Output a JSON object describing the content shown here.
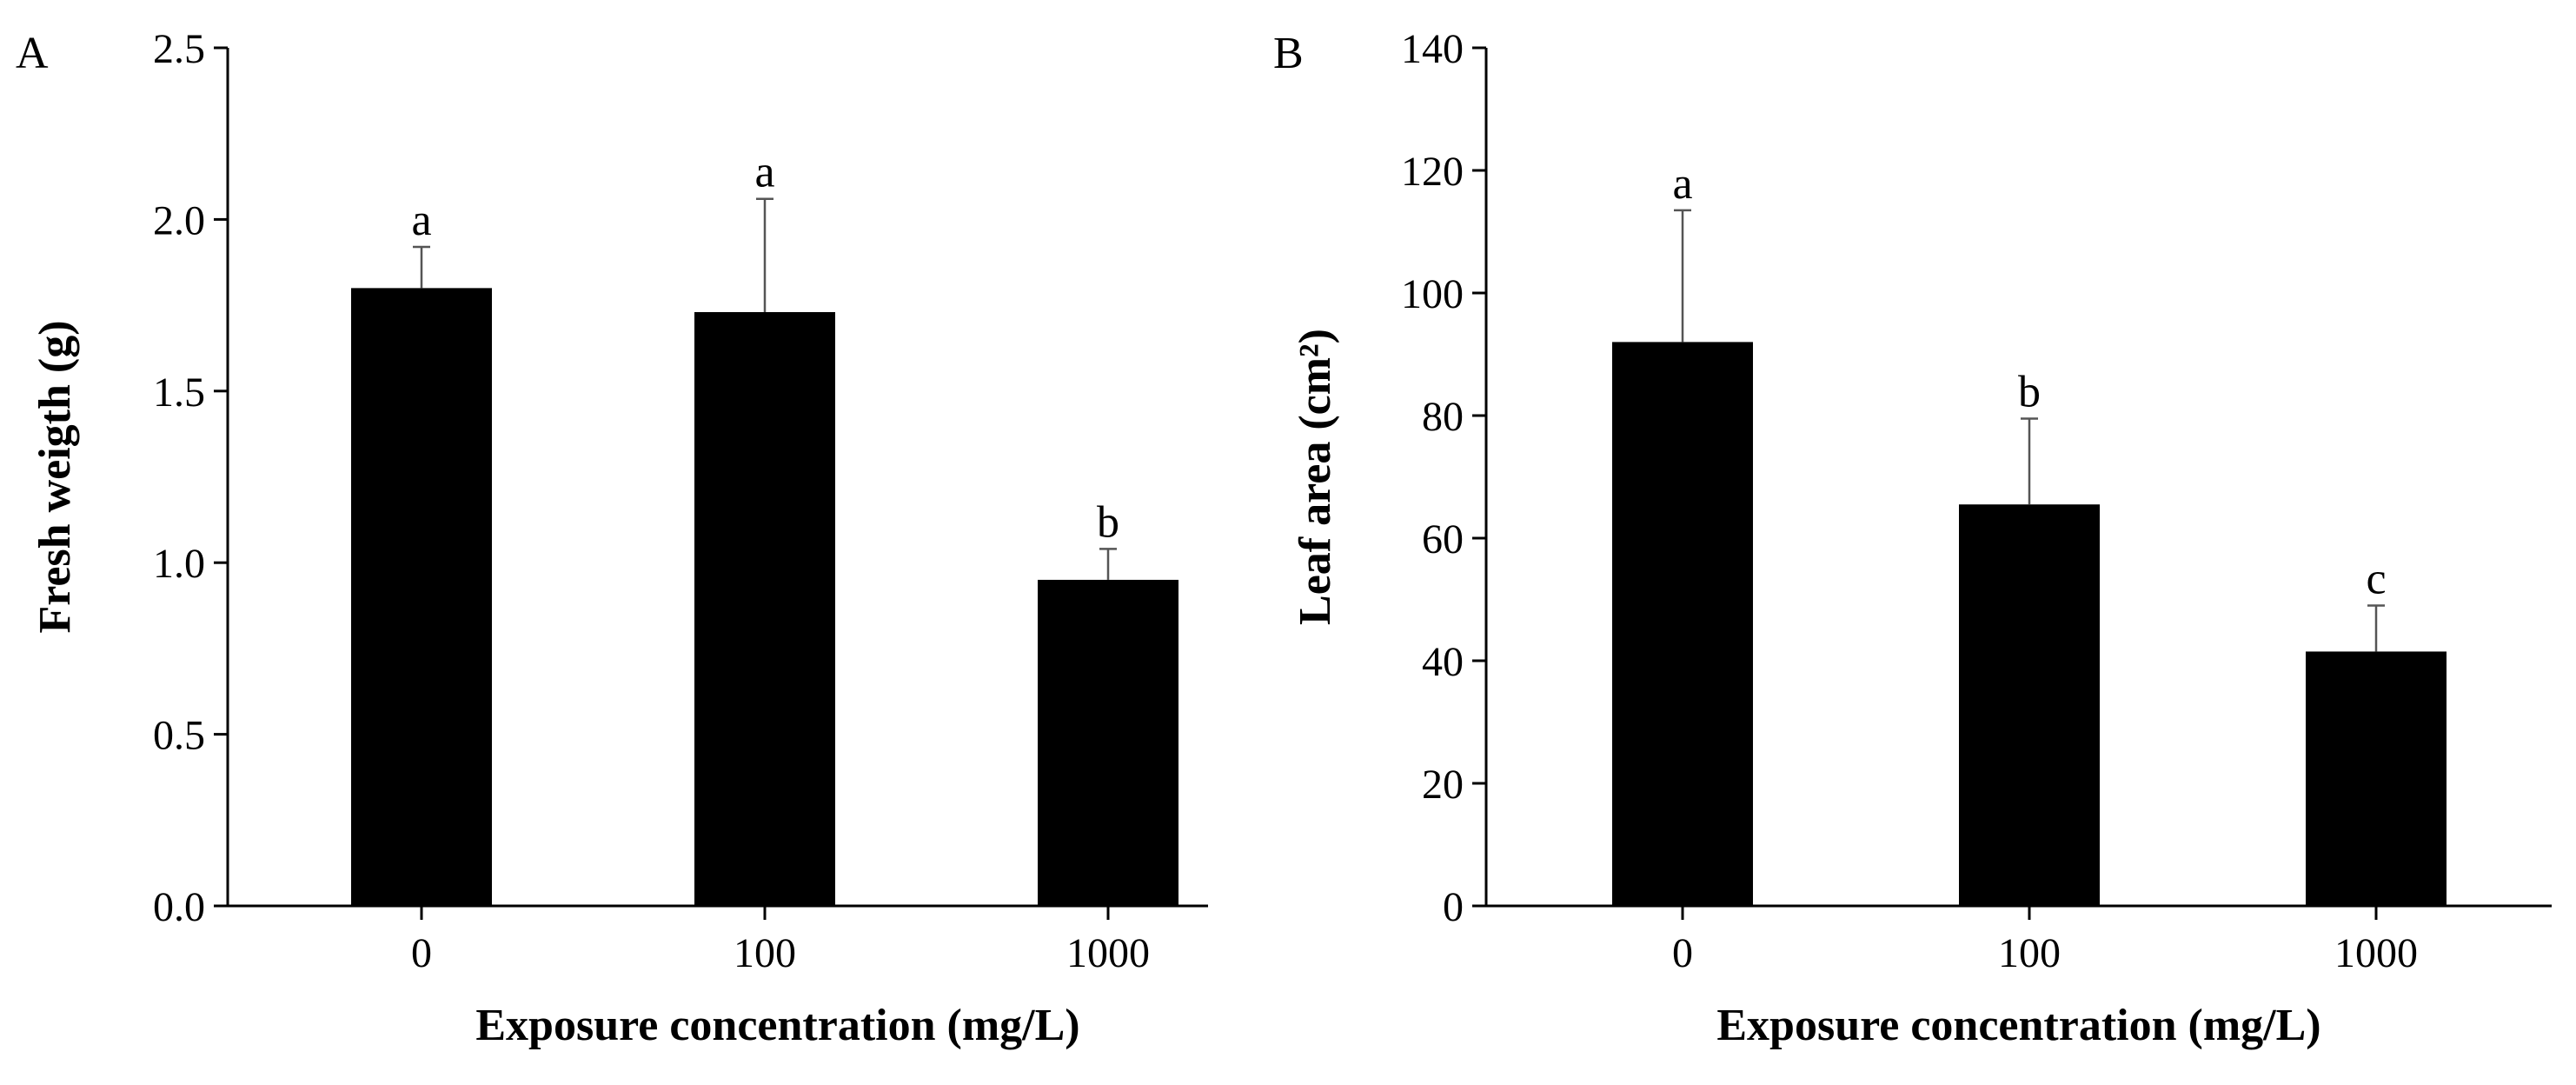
{
  "chart_data": [
    {
      "type": "bar",
      "panel": "A",
      "title": "",
      "xlabel": "Exposure concentration (mg/L)",
      "ylabel": "Fresh weigth (g)",
      "categories": [
        "0",
        "100",
        "1000"
      ],
      "values": [
        1.8,
        1.73,
        0.95
      ],
      "errors": [
        0.12,
        0.33,
        0.09
      ],
      "significance": [
        "a",
        "a",
        "b"
      ],
      "ylim": [
        0,
        2.5
      ],
      "yticks": [
        0.0,
        0.5,
        1.0,
        1.5,
        2.0,
        2.5
      ],
      "ytick_labels": [
        "0.0",
        "0.5",
        "1.0",
        "1.5",
        "2.0",
        "2.5"
      ],
      "grid": false,
      "color": "#000000"
    },
    {
      "type": "bar",
      "panel": "B",
      "title": "",
      "xlabel": "Exposure concentration (mg/L)",
      "ylabel": "Leaf area (cm²)",
      "categories": [
        "0",
        "100",
        "1000"
      ],
      "values": [
        92,
        65.5,
        41.5
      ],
      "errors": [
        21.5,
        14,
        7.5
      ],
      "significance": [
        "a",
        "b",
        "c"
      ],
      "ylim": [
        0,
        140
      ],
      "yticks": [
        0,
        20,
        40,
        60,
        80,
        100,
        120,
        140
      ],
      "ytick_labels": [
        "0",
        "20",
        "40",
        "60",
        "80",
        "100",
        "120",
        "140"
      ],
      "grid": false,
      "color": "#000000"
    }
  ]
}
